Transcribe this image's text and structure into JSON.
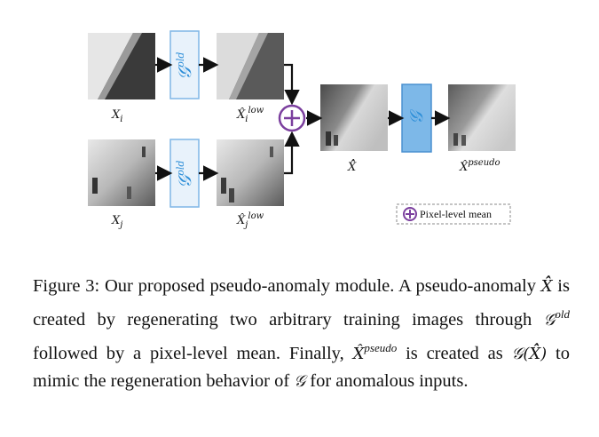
{
  "figure": {
    "labels": {
      "xi": "X",
      "xi_sub": "i",
      "xj": "X",
      "xj_sub": "j",
      "xi_low": "X̂",
      "xi_low_sub": "i",
      "xi_low_sup": "low",
      "xj_low": "X̂",
      "xj_low_sub": "j",
      "xj_low_sup": "low",
      "xhat_hat": "X̂̂",
      "xpseudo": "X̂",
      "xpseudo_sup": "pseudo"
    },
    "blocks": {
      "g_old_top": "𝒢",
      "g_old_top_sup": "old",
      "g_old_bottom": "𝒢",
      "g_old_bottom_sup": "old",
      "g": "𝒢"
    },
    "legend": {
      "text": "Pixel-level mean"
    },
    "colors": {
      "block_fill": "#e8f2fb",
      "block_stroke": "#7fb6e6",
      "g_fill": "#7db8e8",
      "g_stroke": "#4a90d0",
      "plus_color": "#7b3f9e"
    }
  },
  "caption": {
    "p1": "Figure 3:  Our proposed pseudo-anomaly module.  A pseudo-anomaly ",
    "xhh": "X̂̂",
    "p2": " is created by regenerating two arbitrary training images through ",
    "gold": "𝒢",
    "gold_sup": "old",
    "p3": " followed by a pixel-level mean.  Finally, ",
    "xp": "X̂",
    "xp_sup": "pseudo",
    "p4": " is created as ",
    "gx": "𝒢(X̂̂)",
    "p5": " to mimic the regeneration behavior of ",
    "g": "𝒢",
    "p6": " for anomalous inputs."
  }
}
